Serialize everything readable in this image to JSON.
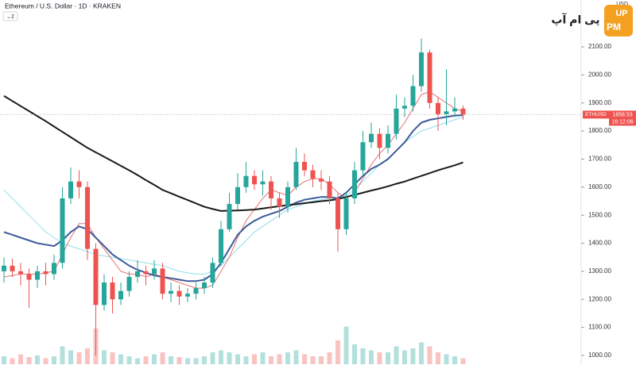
{
  "header": {
    "title": "Ethereum / U.S. Dollar · 1D · KRAKEN",
    "indicators": "2"
  },
  "logo": {
    "text": "پی ام آپ",
    "badge_top": "UP",
    "badge_bottom": "PM"
  },
  "chart_data": {
    "type": "candlestick",
    "axis_unit": "USD",
    "symbol": "ETHUSD",
    "countdown": "16:12:06",
    "up_color": "#26a69a",
    "down_color": "#ef5350",
    "open": [
      1300,
      1320,
      1300,
      1290,
      1270,
      1300,
      1290,
      1330,
      1560,
      1620,
      1600,
      1380,
      1180,
      1260,
      1200,
      1230,
      1280,
      1300,
      1290,
      1310,
      1220,
      1230,
      1210,
      1220,
      1240,
      1260,
      1330,
      1450,
      1540,
      1600,
      1640,
      1610,
      1620,
      1560,
      1530,
      1600,
      1690,
      1660,
      1630,
      1620,
      1560,
      1450,
      1560,
      1660,
      1760,
      1790,
      1740,
      1790,
      1880,
      1890,
      1960,
      2080,
      1900,
      1860,
      1870,
      1880
    ],
    "high": [
      1350,
      1345,
      1330,
      1310,
      1320,
      1330,
      1360,
      1600,
      1670,
      1660,
      1620,
      1400,
      1290,
      1280,
      1260,
      1300,
      1340,
      1320,
      1340,
      1330,
      1260,
      1250,
      1240,
      1260,
      1280,
      1350,
      1480,
      1580,
      1650,
      1690,
      1660,
      1660,
      1640,
      1580,
      1620,
      1740,
      1720,
      1680,
      1660,
      1640,
      1580,
      1580,
      1690,
      1800,
      1830,
      1810,
      1820,
      1930,
      1920,
      2000,
      2130,
      2090,
      1920,
      2020,
      1920,
      1890
    ],
    "low": [
      1260,
      1280,
      1250,
      1170,
      1240,
      1250,
      1270,
      1310,
      1540,
      1560,
      1340,
      1000,
      1160,
      1150,
      1180,
      1210,
      1260,
      1250,
      1270,
      1200,
      1190,
      1180,
      1190,
      1200,
      1220,
      1240,
      1320,
      1440,
      1520,
      1580,
      1590,
      1570,
      1520,
      1490,
      1510,
      1590,
      1640,
      1600,
      1590,
      1540,
      1370,
      1430,
      1540,
      1640,
      1740,
      1700,
      1720,
      1770,
      1850,
      1870,
      1940,
      1880,
      1800,
      1820,
      1850,
      1840
    ],
    "close": [
      1320,
      1300,
      1290,
      1270,
      1300,
      1290,
      1330,
      1560,
      1620,
      1600,
      1380,
      1180,
      1260,
      1200,
      1230,
      1280,
      1300,
      1290,
      1310,
      1220,
      1230,
      1210,
      1220,
      1240,
      1260,
      1330,
      1450,
      1540,
      1600,
      1640,
      1610,
      1620,
      1560,
      1530,
      1600,
      1690,
      1660,
      1630,
      1620,
      1560,
      1450,
      1560,
      1660,
      1760,
      1790,
      1740,
      1790,
      1880,
      1890,
      1960,
      2080,
      1900,
      1860,
      1870,
      1880,
      1858.53
    ],
    "volume": [
      20,
      15,
      25,
      18,
      22,
      15,
      20,
      45,
      35,
      30,
      40,
      90,
      35,
      30,
      25,
      20,
      15,
      20,
      25,
      30,
      20,
      18,
      15,
      15,
      20,
      30,
      35,
      30,
      25,
      20,
      25,
      30,
      20,
      25,
      30,
      35,
      25,
      20,
      20,
      30,
      60,
      95,
      50,
      40,
      35,
      30,
      30,
      45,
      35,
      40,
      55,
      45,
      30,
      25,
      20,
      15
    ],
    "volume_lim": [
      0,
      100
    ],
    "series": [
      {
        "color": "#8fe0e8",
        "values": [
          1590,
          1560,
          1530,
          1500,
          1470,
          1440,
          1420,
          1400,
          1390,
          1380,
          1370,
          1360,
          1355,
          1350,
          1345,
          1340,
          1335,
          1330,
          1325,
          1320,
          1310,
          1300,
          1295,
          1290,
          1290,
          1300,
          1320,
          1350,
          1380,
          1410,
          1440,
          1460,
          1480,
          1500,
          1520,
          1530,
          1540,
          1550,
          1555,
          1560,
          1560,
          1570,
          1590,
          1620,
          1650,
          1680,
          1700,
          1730,
          1760,
          1780,
          1800,
          1810,
          1820,
          1830,
          1840,
          1850
        ]
      },
      {
        "color": "#e57373",
        "values": [
          1280,
          1285,
          1290,
          1290,
          1290,
          1295,
          1300,
          1360,
          1420,
          1470,
          1470,
          1420,
          1380,
          1340,
          1300,
          1290,
          1290,
          1280,
          1290,
          1280,
          1270,
          1260,
          1250,
          1240,
          1240,
          1250,
          1300,
          1350,
          1420,
          1480,
          1520,
          1560,
          1590,
          1580,
          1570,
          1600,
          1620,
          1630,
          1630,
          1610,
          1580,
          1560,
          1580,
          1630,
          1680,
          1720,
          1750,
          1790,
          1830,
          1880,
          1930,
          1940,
          1920,
          1900,
          1880,
          1870
        ]
      },
      {
        "color": "#3d5a99",
        "values": [
          1440,
          1430,
          1420,
          1410,
          1400,
          1395,
          1390,
          1410,
          1440,
          1460,
          1450,
          1420,
          1390,
          1360,
          1340,
          1320,
          1305,
          1295,
          1285,
          1280,
          1275,
          1270,
          1265,
          1265,
          1270,
          1290,
          1330,
          1380,
          1430,
          1460,
          1480,
          1495,
          1505,
          1515,
          1530,
          1545,
          1555,
          1560,
          1565,
          1565,
          1560,
          1580,
          1610,
          1640,
          1665,
          1680,
          1700,
          1730,
          1760,
          1800,
          1830,
          1840,
          1845,
          1850,
          1855,
          1857
        ]
      },
      {
        "color": "#1a1a1a",
        "values": [
          1925,
          1907,
          1889,
          1871,
          1853,
          1835,
          1816,
          1797,
          1778,
          1759,
          1740,
          1724,
          1708,
          1692,
          1676,
          1660,
          1643,
          1625,
          1608,
          1590,
          1578,
          1566,
          1554,
          1542,
          1530,
          1522,
          1515,
          1516,
          1517,
          1518,
          1520,
          1524,
          1528,
          1532,
          1536,
          1539,
          1543,
          1546,
          1550,
          1553,
          1557,
          1565,
          1572,
          1580,
          1588,
          1595,
          1603,
          1612,
          1620,
          1630,
          1640,
          1650,
          1660,
          1669,
          1678,
          1688
        ]
      }
    ],
    "ylim": [
      966,
      2267
    ],
    "yticks": [
      {
        "value": 1000,
        "label": "1000.00"
      },
      {
        "value": 1100,
        "label": "1100.00"
      },
      {
        "value": 1200,
        "label": "1200.00"
      },
      {
        "value": 1300,
        "label": "1300.00"
      },
      {
        "value": 1400,
        "label": "1400.00"
      },
      {
        "value": 1500,
        "label": "1500.00"
      },
      {
        "value": 1600,
        "label": "1600.00"
      },
      {
        "value": 1700,
        "label": "1700.00"
      },
      {
        "value": 1800,
        "label": "1800.00"
      },
      {
        "value": 1900,
        "label": "1900.00"
      },
      {
        "value": 2000,
        "label": "2000.00"
      },
      {
        "value": 2100,
        "label": "2100.00"
      }
    ],
    "grid": false
  }
}
